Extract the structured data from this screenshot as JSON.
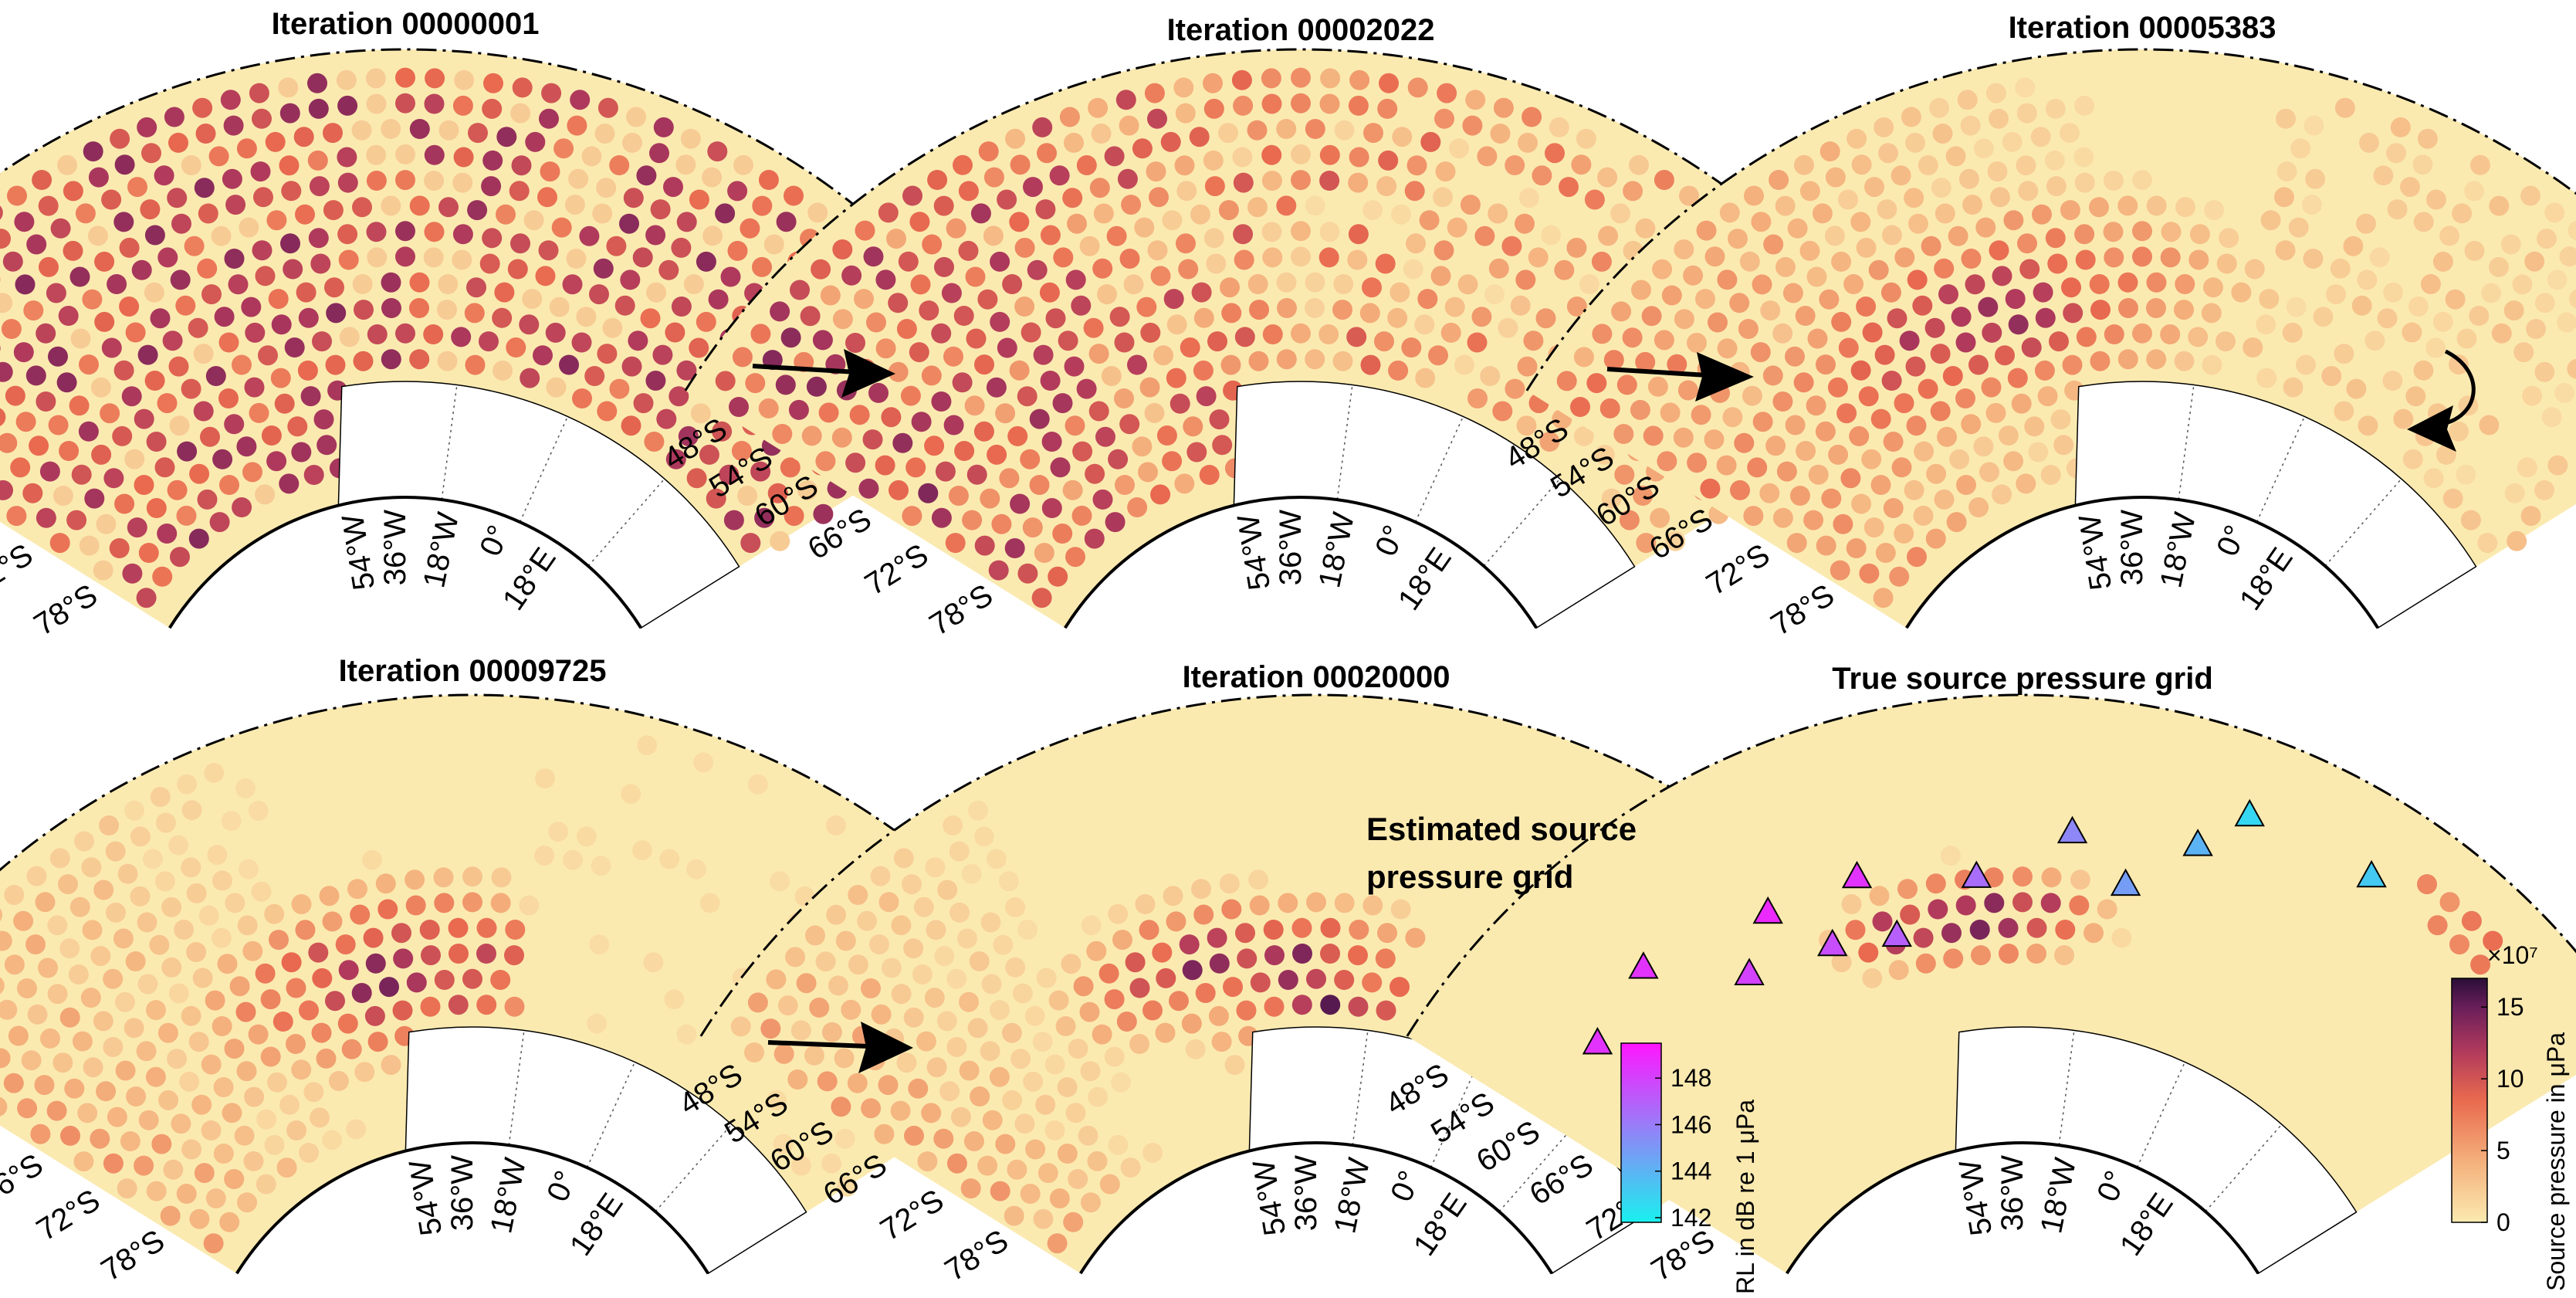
{
  "figure": {
    "annotation_lines": [
      "Estimated source",
      "pressure grid"
    ]
  },
  "colors": {
    "land_background": "#ffffff",
    "sea_low": "#fbeab0",
    "sea_mid": "#e96a4f",
    "sea_high": "#2a0e37",
    "receiver_low": "#19f0ef",
    "receiver_high": "#ff16ff"
  },
  "latitude_labels": [
    "48°S",
    "54°S",
    "60°S",
    "66°S",
    "72°S",
    "78°S"
  ],
  "longitude_labels": [
    "54°W",
    "36°W",
    "18°W",
    "0°",
    "18°E"
  ],
  "chart_data": [
    {
      "type": "heatmap",
      "title": "Iteration 00000001",
      "pattern": "uniform-random",
      "coverage": 1.0,
      "max_intensity": 0.9
    },
    {
      "type": "heatmap",
      "title": "Iteration 00002022",
      "pattern": "west-weighted",
      "coverage": 1.0,
      "max_intensity": 0.9
    },
    {
      "type": "heatmap",
      "title": "Iteration 00005383",
      "pattern": "converging-west",
      "coverage": 1.0,
      "max_intensity": 0.95
    },
    {
      "type": "heatmap",
      "title": "Iteration 00009725",
      "pattern": "converging-center",
      "coverage": 1.0,
      "max_intensity": 0.95
    },
    {
      "type": "heatmap",
      "title": "Iteration 00020000",
      "pattern": "estimated-final",
      "coverage": 1.0,
      "max_intensity": 0.95
    },
    {
      "type": "heatmap",
      "title": "True source pressure grid",
      "pattern": "true-source",
      "colorbar": {
        "label": "Source pressure in μPa",
        "exponent": "×10⁷",
        "ticks": [
          "0",
          "5",
          "10",
          "15"
        ],
        "range": [
          0,
          17
        ]
      },
      "receivers": [
        {
          "lon": -58,
          "lat": -60,
          "rl_db": 148.5
        },
        {
          "lon": -51,
          "lat": -58,
          "rl_db": 148.5
        },
        {
          "lon": -40,
          "lat": -60,
          "rl_db": 148.8
        },
        {
          "lon": -32,
          "lat": -60,
          "rl_db": 148.5
        },
        {
          "lon": -44,
          "lat": -64,
          "rl_db": 148
        },
        {
          "lon": -36,
          "lat": -65,
          "rl_db": 147.6
        },
        {
          "lon": -30,
          "lat": -66,
          "rl_db": 147
        },
        {
          "lon": -22,
          "lat": -62,
          "rl_db": 146.5
        },
        {
          "lon": -14,
          "lat": -58,
          "rl_db": 145.6
        },
        {
          "lon": -9,
          "lat": -62,
          "rl_db": 144.8
        },
        {
          "lon": -4,
          "lat": -57,
          "rl_db": 144
        },
        {
          "lon": -1,
          "lat": -53,
          "rl_db": 142.7
        },
        {
          "lon": 9,
          "lat": -53,
          "rl_db": 143.2
        }
      ],
      "receiver_colorbar": {
        "label": "RL in dB re 1 μPa",
        "ticks": [
          "142",
          "144",
          "146",
          "148"
        ],
        "range": [
          141.8,
          149.5
        ]
      }
    }
  ]
}
